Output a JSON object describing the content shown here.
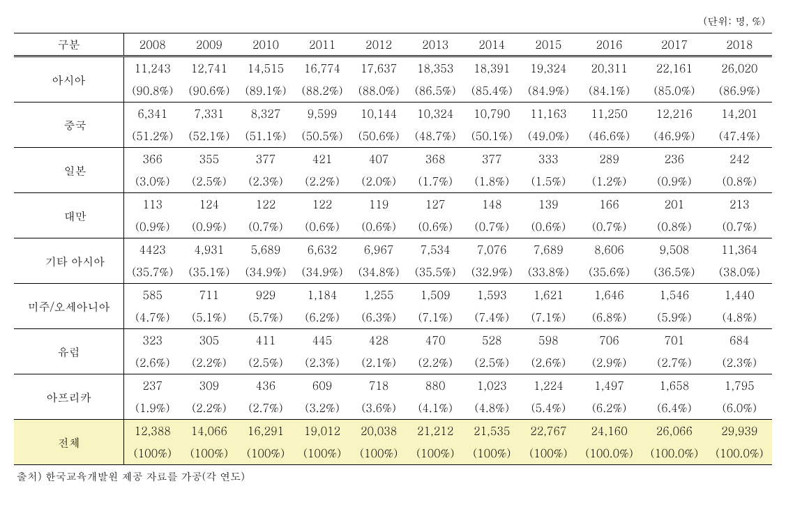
{
  "unit_label": "(단위: 명, %)",
  "header": {
    "category_label": "구분",
    "years": [
      "2008",
      "2009",
      "2010",
      "2011",
      "2012",
      "2013",
      "2014",
      "2015",
      "2016",
      "2017",
      "2018"
    ]
  },
  "rows": [
    {
      "label": "아시아",
      "indent": false,
      "values": [
        "11,243",
        "12,741",
        "14,515",
        "16,774",
        "17,637",
        "18,353",
        "18,391",
        "19,324",
        "20,311",
        "22,161",
        "26,020"
      ],
      "percents": [
        "(90.8%)",
        "(90.6%)",
        "(89.1%)",
        "(88.2%)",
        "(88.0%)",
        "(86.5%)",
        "(85.4%)",
        "(84.9%)",
        "(84.1%)",
        "(85.0%)",
        "(86.9%)"
      ]
    },
    {
      "label": "중국",
      "indent": true,
      "values": [
        "6,341",
        "7,331",
        "8,327",
        "9,599",
        "10,144",
        "10,324",
        "10,790",
        "11,163",
        "11,250",
        "12,216",
        "14,201"
      ],
      "percents": [
        "(51.2%)",
        "(52.1%)",
        "(51.1%)",
        "(50.5%)",
        "(50.6%)",
        "(48.7%)",
        "(50.1%)",
        "(49.0%)",
        "(46.6%)",
        "(46.9%)",
        "(47.4%)"
      ]
    },
    {
      "label": "일본",
      "indent": true,
      "values": [
        "366",
        "355",
        "377",
        "421",
        "407",
        "368",
        "377",
        "333",
        "289",
        "236",
        "242"
      ],
      "percents": [
        "(3.0%)",
        "(2.5%)",
        "(2.3%)",
        "(2.2%)",
        "(2.0%)",
        "(1.7%)",
        "(1.8%)",
        "(1.5%)",
        "(1.2%)",
        "(0.9%)",
        "(0.8%)"
      ]
    },
    {
      "label": "대만",
      "indent": true,
      "values": [
        "113",
        "124",
        "122",
        "122",
        "119",
        "127",
        "148",
        "139",
        "166",
        "201",
        "213"
      ],
      "percents": [
        "(0.9%)",
        "(0.9%)",
        "(0.7%)",
        "(0.6%)",
        "(0.6%)",
        "(0.6%)",
        "(0.7%)",
        "(0.6%)",
        "(0.7%)",
        "(0.8%)",
        "(0.7%)"
      ]
    },
    {
      "label": "기타 아시아",
      "indent": true,
      "values": [
        "4423",
        "4,931",
        "5,689",
        "6,632",
        "6,967",
        "7,534",
        "7,076",
        "7,689",
        "8,606",
        "9,508",
        "11,364"
      ],
      "percents": [
        "(35.7%)",
        "(35.1%)",
        "(34.9%)",
        "(34.9%)",
        "(34.8%)",
        "(35.5%)",
        "(32.9%)",
        "(33.8%)",
        "(35.6%)",
        "(36.5%)",
        "(38.0%)"
      ]
    },
    {
      "label": "미주/오세아니아",
      "indent": false,
      "values": [
        "585",
        "711",
        "929",
        "1,184",
        "1,255",
        "1,509",
        "1,593",
        "1,621",
        "1,646",
        "1,546",
        "1,440"
      ],
      "percents": [
        "(4.7%)",
        "(5.1%)",
        "(5.7%)",
        "(6.2%)",
        "(6.3%)",
        "(7.1%)",
        "(7.4%)",
        "(7.1%)",
        "(6.8%)",
        "(5.9%)",
        "(4.8%)"
      ]
    },
    {
      "label": "유럽",
      "indent": false,
      "values": [
        "323",
        "305",
        "411",
        "445",
        "428",
        "470",
        "528",
        "598",
        "706",
        "701",
        "684"
      ],
      "percents": [
        "(2.6%)",
        "(2.2%)",
        "(2.5%)",
        "(2.3%)",
        "(2.1%)",
        "(2.2%)",
        "(2.5%)",
        "(2.6%)",
        "(2.9%)",
        "(2.7%)",
        "(2.3%)"
      ]
    },
    {
      "label": "아프리카",
      "indent": false,
      "values": [
        "237",
        "309",
        "436",
        "609",
        "718",
        "880",
        "1,023",
        "1,224",
        "1,497",
        "1,658",
        "1,795"
      ],
      "percents": [
        "(1.9%)",
        "(2.2%)",
        "(2.7%)",
        "(3.2%)",
        "(3.6%)",
        "(4.1%)",
        "(4.8%)",
        "(5.4%)",
        "(6.2%)",
        "(6.4%)",
        "(6.0%)"
      ]
    }
  ],
  "total_row": {
    "label": "전체",
    "values": [
      "12,388",
      "14,066",
      "16,291",
      "19,012",
      "20,038",
      "21,212",
      "21,535",
      "22,767",
      "24,160",
      "26,066",
      "29,939"
    ],
    "percents": [
      "(100%)",
      "(100%)",
      "(100%)",
      "(100%)",
      "(100%)",
      "(100%)",
      "(100%)",
      "(100%)",
      "(100.0%)",
      "(100.0%)",
      "(100.0%)"
    ]
  },
  "source": "출처) 한국교육개발원 제공 자료를 가공(각 연도)",
  "colors": {
    "background": "#ffffff",
    "text": "#000000",
    "border": "#000000",
    "highlight_bg": "#f8f5c3"
  },
  "fontsize": {
    "body": 16,
    "small": 15
  }
}
